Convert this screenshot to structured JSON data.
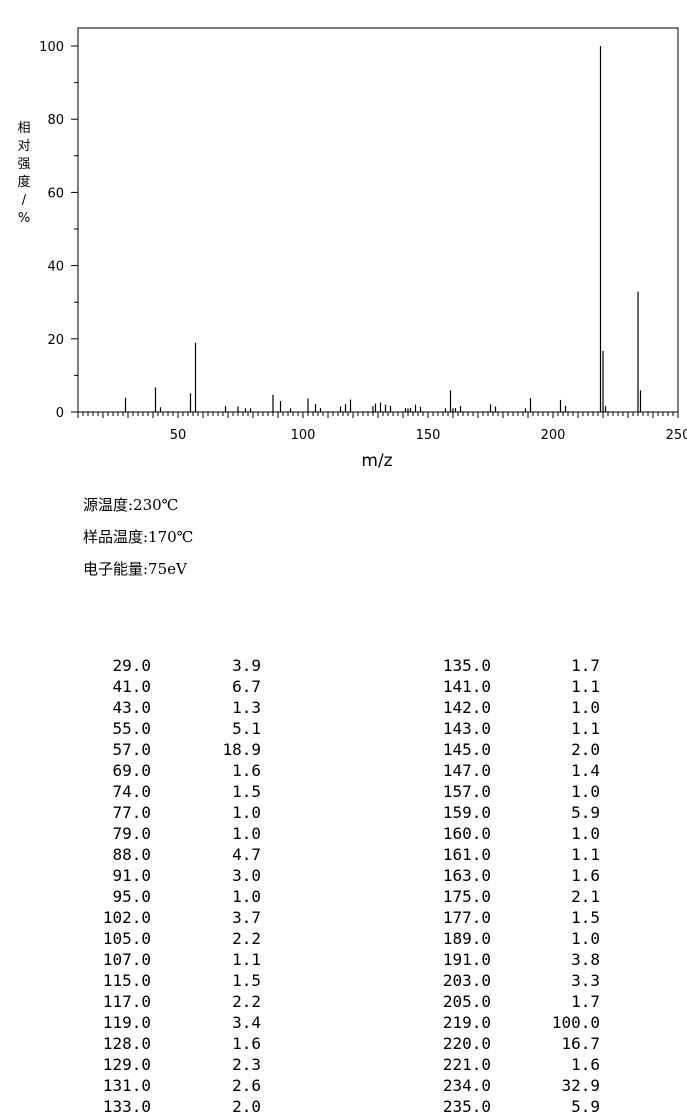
{
  "chart_data": {
    "type": "bar",
    "title": "",
    "xlabel": "m/z",
    "ylabel": "相对强度/%",
    "xlim": [
      10,
      250
    ],
    "ylim": [
      0,
      100
    ],
    "x_ticks": [
      "50",
      "100",
      "150",
      "200",
      "250"
    ],
    "y_ticks": [
      "0",
      "20",
      "40",
      "60",
      "80",
      "100"
    ],
    "peaks": [
      {
        "mz": 29.0,
        "intensity": 3.9
      },
      {
        "mz": 41.0,
        "intensity": 6.7
      },
      {
        "mz": 43.0,
        "intensity": 1.3
      },
      {
        "mz": 55.0,
        "intensity": 5.1
      },
      {
        "mz": 57.0,
        "intensity": 18.9
      },
      {
        "mz": 69.0,
        "intensity": 1.6
      },
      {
        "mz": 74.0,
        "intensity": 1.5
      },
      {
        "mz": 77.0,
        "intensity": 1.0
      },
      {
        "mz": 79.0,
        "intensity": 1.0
      },
      {
        "mz": 88.0,
        "intensity": 4.7
      },
      {
        "mz": 91.0,
        "intensity": 3.0
      },
      {
        "mz": 95.0,
        "intensity": 1.0
      },
      {
        "mz": 102.0,
        "intensity": 3.7
      },
      {
        "mz": 105.0,
        "intensity": 2.2
      },
      {
        "mz": 107.0,
        "intensity": 1.1
      },
      {
        "mz": 115.0,
        "intensity": 1.5
      },
      {
        "mz": 117.0,
        "intensity": 2.2
      },
      {
        "mz": 119.0,
        "intensity": 3.4
      },
      {
        "mz": 128.0,
        "intensity": 1.6
      },
      {
        "mz": 129.0,
        "intensity": 2.3
      },
      {
        "mz": 131.0,
        "intensity": 2.6
      },
      {
        "mz": 133.0,
        "intensity": 2.0
      },
      {
        "mz": 135.0,
        "intensity": 1.7
      },
      {
        "mz": 141.0,
        "intensity": 1.1
      },
      {
        "mz": 142.0,
        "intensity": 1.0
      },
      {
        "mz": 143.0,
        "intensity": 1.1
      },
      {
        "mz": 145.0,
        "intensity": 2.0
      },
      {
        "mz": 147.0,
        "intensity": 1.4
      },
      {
        "mz": 157.0,
        "intensity": 1.0
      },
      {
        "mz": 159.0,
        "intensity": 5.9
      },
      {
        "mz": 160.0,
        "intensity": 1.0
      },
      {
        "mz": 161.0,
        "intensity": 1.1
      },
      {
        "mz": 163.0,
        "intensity": 1.6
      },
      {
        "mz": 175.0,
        "intensity": 2.1
      },
      {
        "mz": 177.0,
        "intensity": 1.5
      },
      {
        "mz": 189.0,
        "intensity": 1.0
      },
      {
        "mz": 191.0,
        "intensity": 3.8
      },
      {
        "mz": 203.0,
        "intensity": 3.3
      },
      {
        "mz": 205.0,
        "intensity": 1.7
      },
      {
        "mz": 219.0,
        "intensity": 100.0
      },
      {
        "mz": 220.0,
        "intensity": 16.7
      },
      {
        "mz": 221.0,
        "intensity": 1.6
      },
      {
        "mz": 234.0,
        "intensity": 32.9
      },
      {
        "mz": 235.0,
        "intensity": 5.9
      }
    ]
  },
  "conditions": {
    "source_temp": "源温度:230℃",
    "sample_temp": "样品温度:170℃",
    "electron_energy": "电子能量:75eV"
  },
  "peak_table": {
    "left": [
      {
        "mz": "29.0",
        "intensity": "3.9"
      },
      {
        "mz": "41.0",
        "intensity": "6.7"
      },
      {
        "mz": "43.0",
        "intensity": "1.3"
      },
      {
        "mz": "55.0",
        "intensity": "5.1"
      },
      {
        "mz": "57.0",
        "intensity": "18.9"
      },
      {
        "mz": "69.0",
        "intensity": "1.6"
      },
      {
        "mz": "74.0",
        "intensity": "1.5"
      },
      {
        "mz": "77.0",
        "intensity": "1.0"
      },
      {
        "mz": "79.0",
        "intensity": "1.0"
      },
      {
        "mz": "88.0",
        "intensity": "4.7"
      },
      {
        "mz": "91.0",
        "intensity": "3.0"
      },
      {
        "mz": "95.0",
        "intensity": "1.0"
      },
      {
        "mz": "102.0",
        "intensity": "3.7"
      },
      {
        "mz": "105.0",
        "intensity": "2.2"
      },
      {
        "mz": "107.0",
        "intensity": "1.1"
      },
      {
        "mz": "115.0",
        "intensity": "1.5"
      },
      {
        "mz": "117.0",
        "intensity": "2.2"
      },
      {
        "mz": "119.0",
        "intensity": "3.4"
      },
      {
        "mz": "128.0",
        "intensity": "1.6"
      },
      {
        "mz": "129.0",
        "intensity": "2.3"
      },
      {
        "mz": "131.0",
        "intensity": "2.6"
      },
      {
        "mz": "133.0",
        "intensity": "2.0"
      }
    ],
    "right": [
      {
        "mz": "135.0",
        "intensity": "1.7"
      },
      {
        "mz": "141.0",
        "intensity": "1.1"
      },
      {
        "mz": "142.0",
        "intensity": "1.0"
      },
      {
        "mz": "143.0",
        "intensity": "1.1"
      },
      {
        "mz": "145.0",
        "intensity": "2.0"
      },
      {
        "mz": "147.0",
        "intensity": "1.4"
      },
      {
        "mz": "157.0",
        "intensity": "1.0"
      },
      {
        "mz": "159.0",
        "intensity": "5.9"
      },
      {
        "mz": "160.0",
        "intensity": "1.0"
      },
      {
        "mz": "161.0",
        "intensity": "1.1"
      },
      {
        "mz": "163.0",
        "intensity": "1.6"
      },
      {
        "mz": "175.0",
        "intensity": "2.1"
      },
      {
        "mz": "177.0",
        "intensity": "1.5"
      },
      {
        "mz": "189.0",
        "intensity": "1.0"
      },
      {
        "mz": "191.0",
        "intensity": "3.8"
      },
      {
        "mz": "203.0",
        "intensity": "3.3"
      },
      {
        "mz": "205.0",
        "intensity": "1.7"
      },
      {
        "mz": "219.0",
        "intensity": "100.0"
      },
      {
        "mz": "220.0",
        "intensity": "16.7"
      },
      {
        "mz": "221.0",
        "intensity": "1.6"
      },
      {
        "mz": "234.0",
        "intensity": "32.9"
      },
      {
        "mz": "235.0",
        "intensity": "5.9"
      }
    ]
  }
}
